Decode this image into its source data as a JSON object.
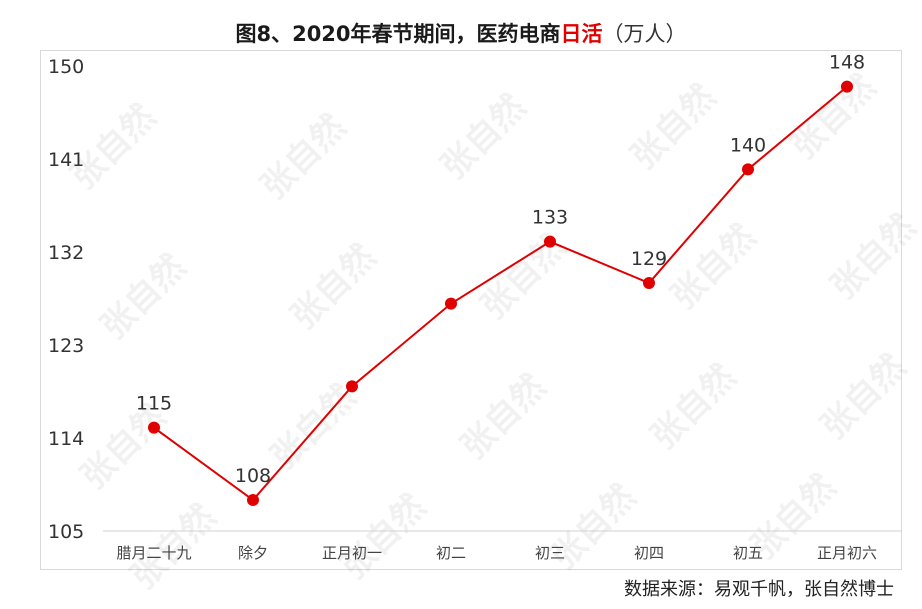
{
  "chart_data": {
    "type": "line",
    "title_parts": {
      "main": "图8、2020年春节期间，医药电商",
      "highlight": "日活",
      "unit": "（万人）"
    },
    "categories": [
      "腊月二十九",
      "除夕",
      "正月初一",
      "初二",
      "初三",
      "初四",
      "初五",
      "正月初六"
    ],
    "series": [
      {
        "values": [
          115,
          108,
          119,
          127,
          133,
          129,
          140,
          148
        ],
        "data_labels": [
          "115",
          "108",
          null,
          null,
          "133",
          "129",
          "140",
          "148"
        ]
      }
    ],
    "ylim": [
      105,
      150
    ],
    "yticks": [
      105,
      114,
      123,
      132,
      141,
      150
    ],
    "grid": false,
    "colors": {
      "line": "#e00000",
      "marker": "#e00000"
    }
  },
  "source": "数据来源：易观千帆，张自然博士",
  "watermark": "张自然"
}
